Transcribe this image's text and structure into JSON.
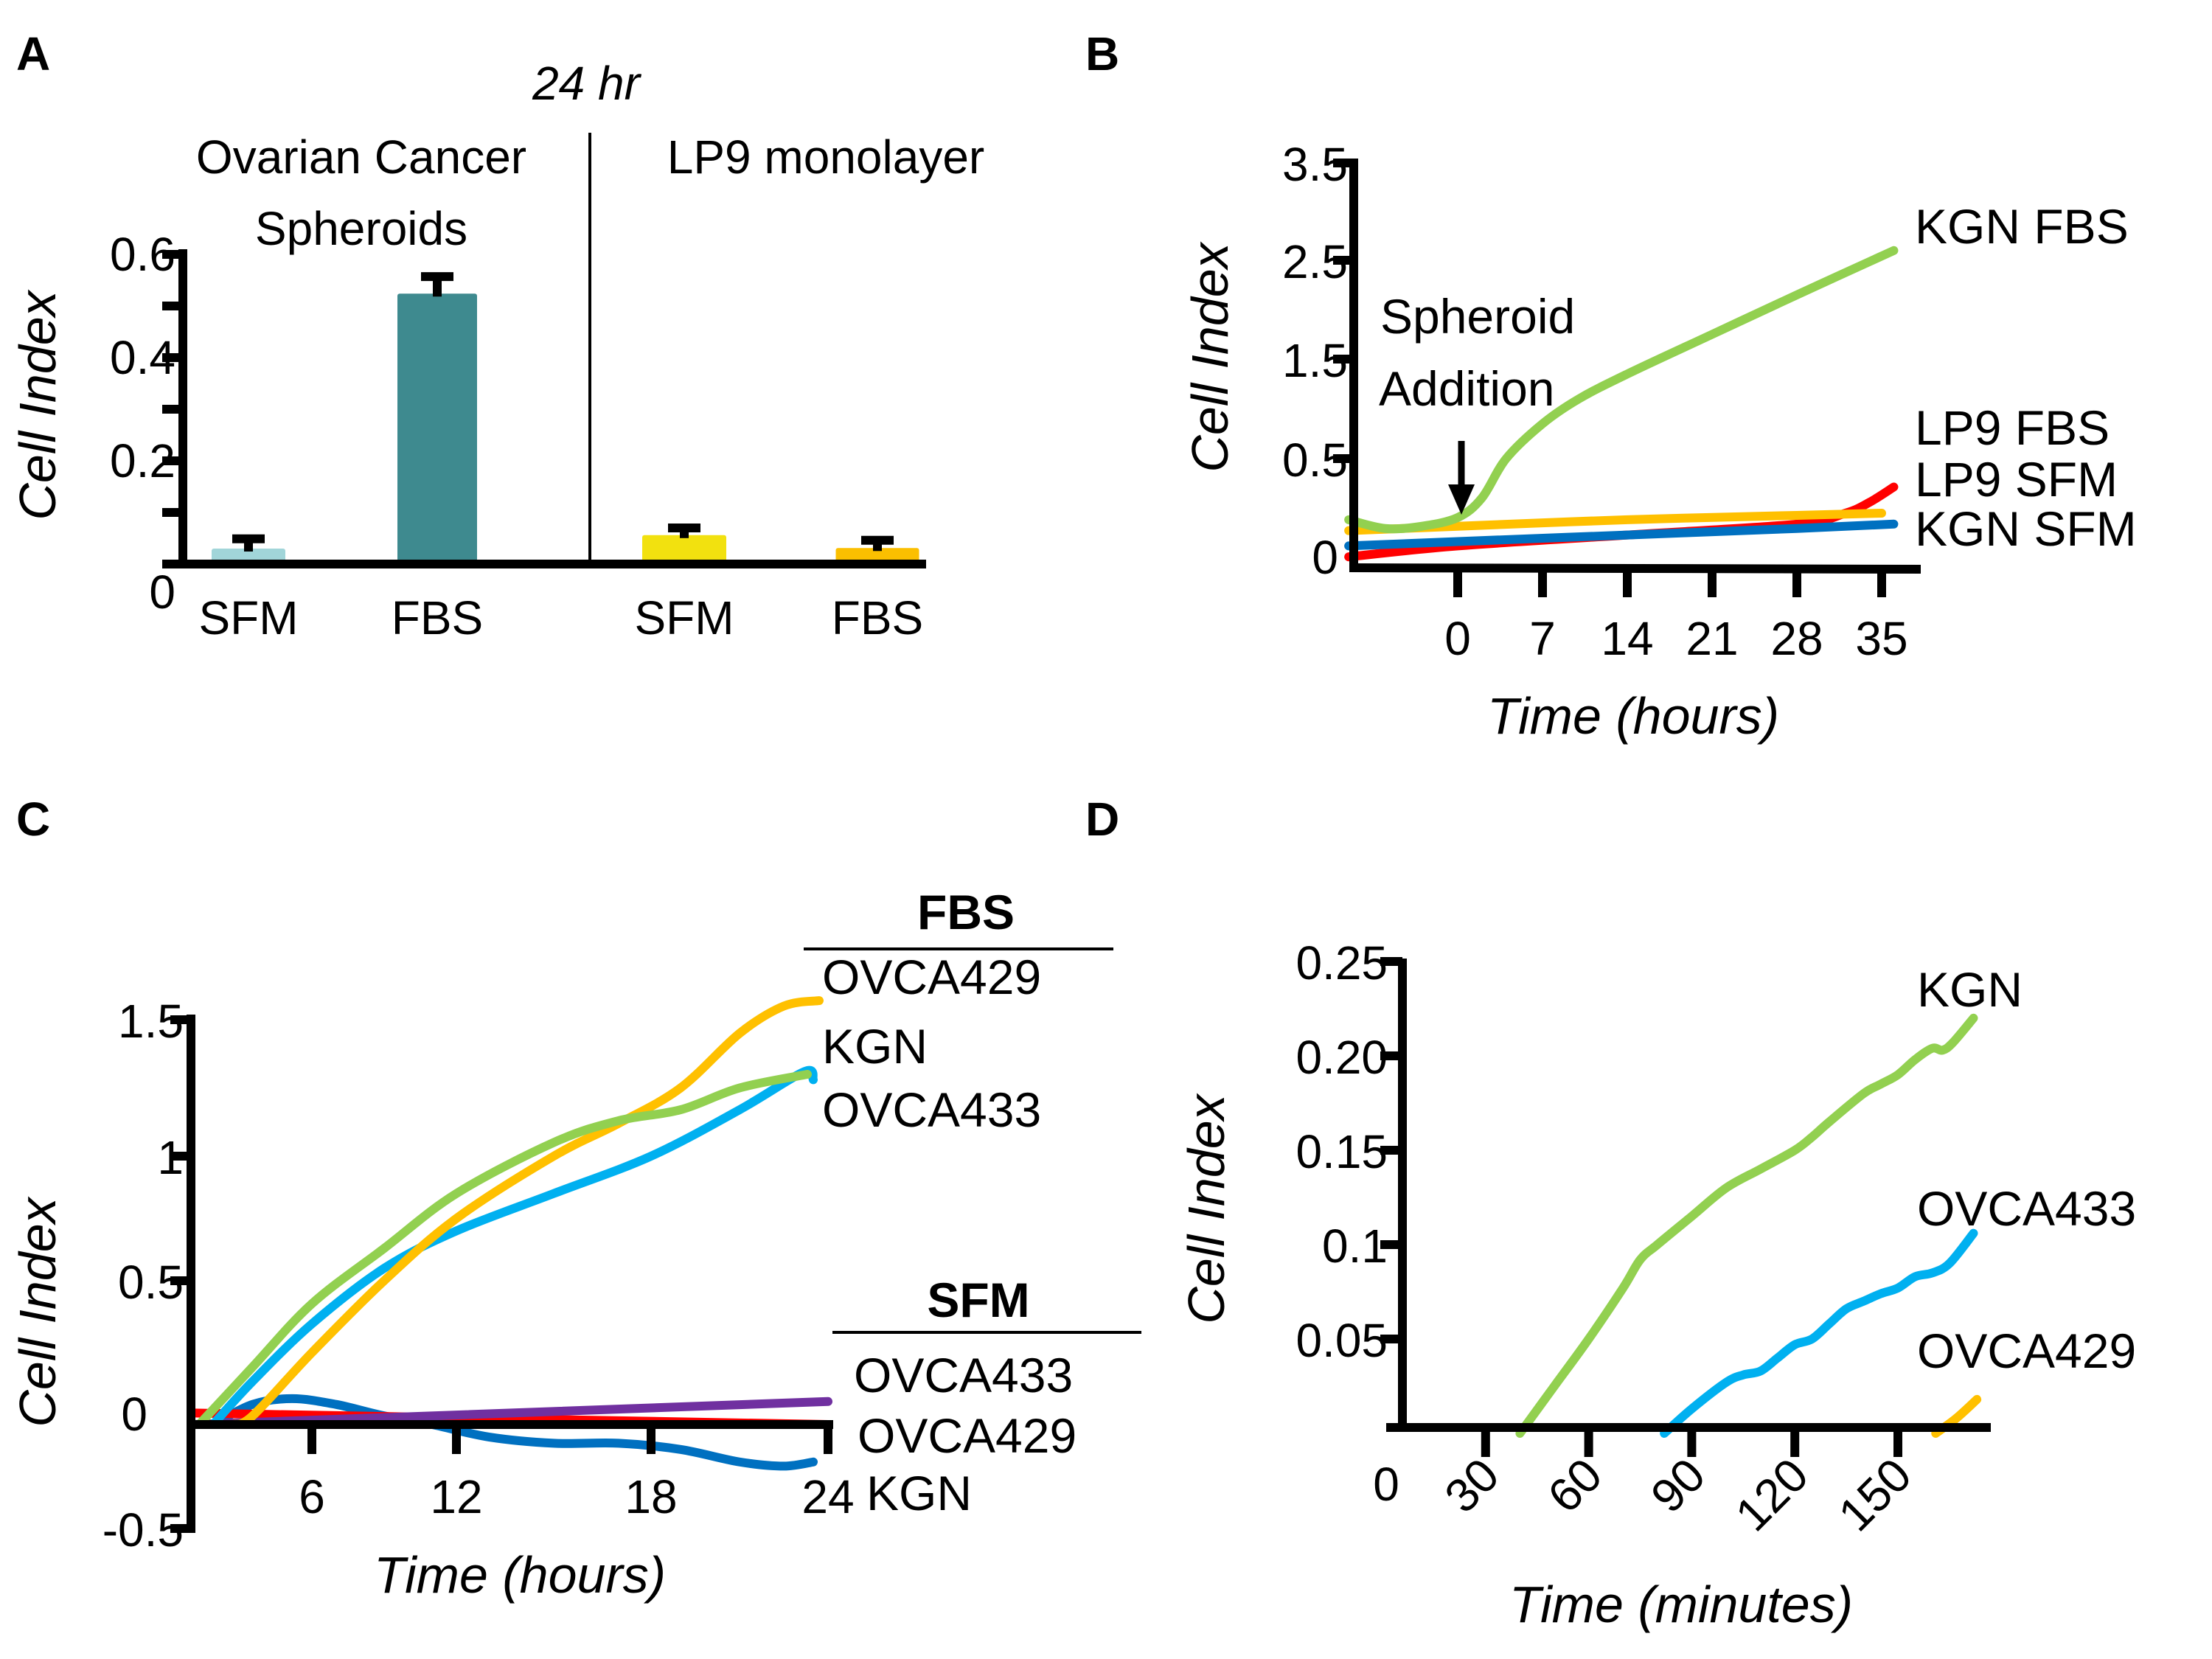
{
  "chart_data": [
    {
      "panel": "A",
      "type": "bar",
      "title": "24 hr",
      "group_labels": [
        "Ovarian Cancer Spheroids",
        "LP9 monolayer"
      ],
      "group_label_lines": [
        [
          "Ovarian Cancer",
          "Spheroids"
        ],
        [
          "LP9 monolayer"
        ]
      ],
      "categories": [
        "SFM",
        "FBS",
        "SFM",
        "FBS"
      ],
      "values": [
        0.03,
        0.524,
        0.056,
        0.031
      ],
      "errors": [
        0.019,
        0.033,
        0.014,
        0.015
      ],
      "colors": [
        "#a1d5d9",
        "#3e8a8f",
        "#f2e10f",
        "#fbbf00"
      ],
      "ylabel": "Cell Index",
      "xlabel": "",
      "ylim": [
        0,
        0.6
      ],
      "yticks": [
        0,
        0.1,
        0.2,
        0.3,
        0.4,
        0.5,
        0.6
      ],
      "ytick_labels": [
        "0",
        "",
        "0.2",
        "",
        "0.4",
        "",
        "0.6"
      ],
      "grid": false
    },
    {
      "panel": "B",
      "type": "line",
      "xlabel": "Time (hours)",
      "ylabel": "Cell Index",
      "xticks": [
        0,
        7,
        14,
        21,
        28,
        35
      ],
      "yticks": [
        0,
        0.5,
        1.5,
        2.5,
        3.5
      ],
      "ytick_labels": [
        "0",
        "0.5",
        "1.5",
        "2.5",
        "3.5"
      ],
      "xlim": [
        -9,
        36
      ],
      "ylim": [
        0,
        3.5
      ],
      "annotation": {
        "lines": [
          "Spheroid",
          "Addition"
        ],
        "x": 0
      },
      "series": [
        {
          "name": "KGN FBS",
          "color": "#92d050",
          "x": [
            -9,
            -6,
            -3,
            0,
            2,
            4,
            7,
            10,
            14,
            21,
            28,
            36
          ],
          "y": [
            0.22,
            0.18,
            0.19,
            0.23,
            0.32,
            0.5,
            0.85,
            1.1,
            1.35,
            1.75,
            2.15,
            2.6
          ]
        },
        {
          "name": "LP9 FBS",
          "color": "#ff0000",
          "x": [
            -9,
            0,
            14,
            28,
            32,
            34,
            36
          ],
          "y": [
            0.05,
            0.1,
            0.15,
            0.2,
            0.25,
            0.3,
            0.37
          ]
        },
        {
          "name": "LP9 SFM",
          "color": "#ffc000",
          "x": [
            -9,
            0,
            14,
            28,
            35
          ],
          "y": [
            0.17,
            0.19,
            0.22,
            0.24,
            0.25
          ]
        },
        {
          "name": "KGN SFM",
          "color": "#0070c0",
          "x": [
            -9,
            0,
            14,
            28,
            36
          ],
          "y": [
            0.1,
            0.12,
            0.15,
            0.18,
            0.2
          ]
        }
      ],
      "legend_labels": [
        "KGN FBS",
        "LP9 FBS",
        "LP9 SFM",
        "KGN SFM"
      ],
      "grid": false
    },
    {
      "panel": "C",
      "type": "line",
      "xlabel": "Time (hours)",
      "ylabel": "Cell Index",
      "xticks": [
        6,
        12,
        18,
        24
      ],
      "yticks": [
        -0.5,
        0,
        0.5,
        1,
        1.5
      ],
      "ytick_labels": [
        "-0.5",
        "0",
        "0.5",
        "1",
        "1.5"
      ],
      "xlim": [
        0,
        24
      ],
      "ylim": [
        -0.5,
        1.5
      ],
      "legend_groups": [
        {
          "heading": "FBS",
          "entries": [
            "OVCA429",
            "KGN",
            "OVCA433"
          ]
        },
        {
          "heading": "SFM",
          "entries": [
            "OVCA433",
            "OVCA429",
            "KGN"
          ]
        }
      ],
      "series": [
        {
          "name": "FBS OVCA429",
          "color": "#ffc000",
          "x": [
            2,
            3,
            6,
            9,
            12,
            15,
            17,
            19,
            21,
            22.5,
            23.7
          ],
          "y": [
            0.0,
            0.03,
            0.25,
            0.5,
            0.75,
            1.0,
            1.12,
            1.25,
            1.45,
            1.55,
            1.57
          ]
        },
        {
          "name": "FBS KGN",
          "color": "#92d050",
          "x": [
            0.3,
            3,
            6,
            9,
            12,
            15,
            17,
            19,
            21,
            23.3
          ],
          "y": [
            0.0,
            0.2,
            0.42,
            0.63,
            0.85,
            1.05,
            1.13,
            1.17,
            1.25,
            1.3
          ]
        },
        {
          "name": "FBS OVCA433",
          "color": "#00b0f0",
          "x": [
            1,
            3,
            6,
            9,
            12,
            15,
            18,
            21,
            23.2,
            23.5
          ],
          "y": [
            0.0,
            0.15,
            0.35,
            0.55,
            0.7,
            0.85,
            1.0,
            1.17,
            1.31,
            1.28
          ]
        },
        {
          "name": "SFM OVCA433",
          "color": "#7030a0",
          "x": [
            0,
            24
          ],
          "y": [
            0.0,
            0.08
          ]
        },
        {
          "name": "SFM OVCA429",
          "color": "#ff0000",
          "x": [
            0,
            24
          ],
          "y": [
            0.04,
            0.0
          ]
        },
        {
          "name": "SFM KGN",
          "color": "#0070c0",
          "x": [
            1,
            3,
            5,
            7,
            9,
            11,
            13,
            15,
            17,
            19,
            21,
            22.5,
            23.5
          ],
          "y": [
            0.0,
            0.07,
            0.09,
            0.07,
            0.03,
            0.0,
            -0.06,
            -0.09,
            -0.09,
            -0.12,
            -0.18,
            -0.2,
            -0.18
          ]
        }
      ],
      "grid": false
    },
    {
      "panel": "D",
      "type": "line",
      "xlabel": "Time (minutes)",
      "ylabel": "Cell Index",
      "xticks": [
        30,
        60,
        90,
        120,
        150
      ],
      "x_origin_label": "0",
      "yticks": [
        0.05,
        0.1,
        0.15,
        0.2,
        0.25
      ],
      "ytick_labels": [
        "0.05",
        "0.1",
        "0.15",
        "0.20",
        "0.25"
      ],
      "xlim": [
        0,
        180
      ],
      "ylim": [
        0,
        0.25
      ],
      "series": [
        {
          "name": "KGN",
          "color": "#92d050",
          "x": [
            40,
            50,
            60,
            70,
            75,
            80,
            90,
            100,
            110,
            120,
            125,
            130,
            140,
            145,
            150,
            155,
            160,
            163,
            166,
            172
          ],
          "y": [
            0.0,
            0.025,
            0.05,
            0.077,
            0.092,
            0.1,
            0.115,
            0.13,
            0.14,
            0.15,
            0.157,
            0.165,
            0.18,
            0.185,
            0.19,
            0.198,
            0.204,
            0.203,
            0.207,
            0.22
          ]
        },
        {
          "name": "OVCA433",
          "color": "#00b0f0",
          "x": [
            82,
            90,
            100,
            105,
            110,
            115,
            120,
            125,
            130,
            135,
            140,
            145,
            150,
            155,
            160,
            165,
            172
          ],
          "y": [
            0.0,
            0.013,
            0.027,
            0.031,
            0.033,
            0.04,
            0.047,
            0.05,
            0.058,
            0.066,
            0.07,
            0.074,
            0.077,
            0.083,
            0.085,
            0.09,
            0.106
          ]
        },
        {
          "name": "OVCA429",
          "color": "#ffc000",
          "x": [
            161,
            167,
            173
          ],
          "y": [
            0.0,
            0.008,
            0.018
          ]
        }
      ],
      "grid": false
    }
  ],
  "panels": {
    "A": {
      "letter": "A",
      "title": "24 hr",
      "group1_line1": "Ovarian Cancer",
      "group1_line2": "Spheroids",
      "group2_line1": "LP9 monolayer",
      "ylabel": "Cell Index"
    },
    "B": {
      "letter": "B",
      "annot_line1": "Spheroid",
      "annot_line2": "Addition",
      "xlabel": "Time (hours)",
      "ylabel": "Cell Index"
    },
    "C": {
      "letter": "C",
      "fbs_heading": "FBS",
      "sfm_heading": "SFM",
      "xlabel": "Time (hours)",
      "ylabel": "Cell Index"
    },
    "D": {
      "letter": "D",
      "xlabel": "Time (minutes)",
      "ylabel": "Cell Index",
      "x_origin_label": "0"
    }
  }
}
